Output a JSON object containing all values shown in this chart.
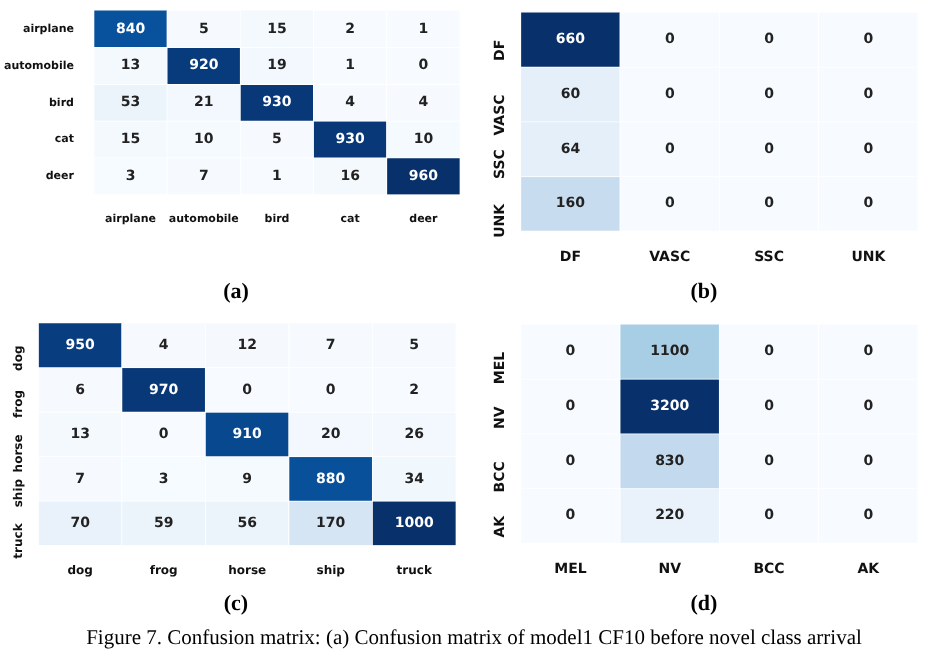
{
  "chart_data": [
    {
      "type": "heatmap",
      "categories": [
        "airplane",
        "automobile",
        "bird",
        "cat",
        "deer"
      ],
      "y_categories": [
        "airplane",
        "automobile",
        "bird",
        "cat",
        "deer"
      ],
      "cells": [
        [
          840,
          5,
          15,
          2,
          1
        ],
        [
          13,
          920,
          19,
          1,
          0
        ],
        [
          53,
          21,
          930,
          4,
          4
        ],
        [
          15,
          10,
          5,
          930,
          10
        ],
        [
          3,
          7,
          1,
          16,
          960
        ]
      ],
      "data_labels": true,
      "annotations": [
        "(a)",
        "Figure 7. Confusion matrix: (a) Confusion matrix of model1 CF10 before novel class arrival"
      ]
    },
    {
      "type": "heatmap",
      "categories": [
        "DF",
        "VASC",
        "SSC",
        "UNK"
      ],
      "y_categories": [
        "DF",
        "VASC",
        "SSC",
        "UNK"
      ],
      "cells": [
        [
          660,
          0,
          0,
          0
        ],
        [
          60,
          0,
          0,
          0
        ],
        [
          64,
          0,
          0,
          0
        ],
        [
          160,
          0,
          0,
          0
        ]
      ],
      "data_labels": true,
      "annotations": [
        "(b)"
      ]
    },
    {
      "type": "heatmap",
      "categories": [
        "dog",
        "frog",
        "horse",
        "ship",
        "truck"
      ],
      "y_categories": [
        "dog",
        "frog",
        "horse",
        "ship",
        "truck"
      ],
      "cells": [
        [
          950,
          4,
          12,
          7,
          5
        ],
        [
          6,
          970,
          0,
          0,
          2
        ],
        [
          13,
          0,
          910,
          20,
          26
        ],
        [
          7,
          3,
          9,
          880,
          34
        ],
        [
          70,
          59,
          56,
          170,
          1000
        ]
      ],
      "data_labels": true,
      "annotations": [
        "(c)"
      ]
    },
    {
      "type": "heatmap",
      "categories": [
        "MEL",
        "NV",
        "BCC",
        "AK"
      ],
      "y_categories": [
        "MEL",
        "NV",
        "BCC",
        "AK"
      ],
      "cells": [
        [
          0,
          1100,
          0,
          0
        ],
        [
          0,
          3200,
          0,
          0
        ],
        [
          0,
          830,
          0,
          0
        ],
        [
          0,
          220,
          0,
          0
        ]
      ],
      "data_labels": true,
      "annotations": [
        "(d)"
      ]
    }
  ]
}
